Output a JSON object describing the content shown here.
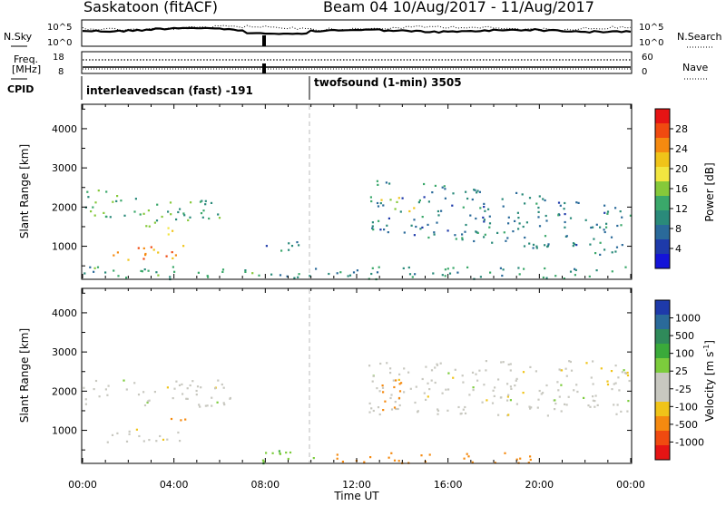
{
  "header": {
    "radar": "Saskatoon (fitACF)",
    "beam_and_date": "Beam 04  10/Aug/2017 - 11/Aug/2017"
  },
  "top_panels": {
    "nsky_label": "N.Sky",
    "nsky_ticks": [
      "10^5",
      "10^0"
    ],
    "nsearch_label": "N.Search",
    "freq_label_1": "Freq.",
    "freq_label_2": "[MHz]",
    "freq_ticks": [
      "18",
      "8"
    ],
    "nave_ticks": [
      "60",
      "0"
    ],
    "nave_label": "Nave",
    "cpid_label": "CPID",
    "cpid_1": "interleavedscan (fast) -191",
    "cpid_2": "twofsound (1-min) 3505"
  },
  "colorbars": {
    "power": {
      "label": "Power [dB]",
      "ticks": [
        "28",
        "24",
        "20",
        "16",
        "12",
        "8",
        "4"
      ],
      "colors": [
        "#e61414",
        "#f04a10",
        "#f58a10",
        "#f0c419",
        "#f2e640",
        "#86c93a",
        "#3aa86a",
        "#2a8a7a",
        "#2a6a9a",
        "#1e3aaa",
        "#1414d8"
      ]
    },
    "velocity": {
      "label": "Velocity [m s",
      "label_sup": "-1",
      "label_end": "]",
      "ticks": [
        "1000",
        "500",
        "100",
        "25",
        "-25",
        "-100",
        "-500",
        "-1000"
      ],
      "colors": [
        "#1e3aaa",
        "#2a6a9a",
        "#2f8a5a",
        "#3aaa3a",
        "#7ccc3c",
        "#c8c8c0",
        "#c8c8c0",
        "#f0c419",
        "#f58a10",
        "#f04a10",
        "#e61414"
      ]
    }
  },
  "axes": {
    "ylabel": "Slant Range [km]",
    "yticks": [
      "4000",
      "3000",
      "2000",
      "1000"
    ],
    "xlabel": "Time UT",
    "xticks": [
      "00:00",
      "04:00",
      "08:00",
      "12:00",
      "16:00",
      "20:00",
      "00:00"
    ]
  },
  "chart_data": [
    {
      "type": "heatmap",
      "title": "",
      "quantity": "Power [dB]",
      "ylabel": "Slant Range [km]",
      "xlabel": "Time UT",
      "x_hours": [
        0,
        24
      ],
      "ylim": [
        180,
        4600
      ],
      "color_range": [
        0,
        30
      ],
      "echo_regions": [
        {
          "t0": 0.0,
          "t1": 6.5,
          "r0": 1600,
          "r1": 2300,
          "trend": "descending-then-rising",
          "power": 12
        },
        {
          "t0": 1.0,
          "t1": 4.5,
          "r0": 650,
          "r1": 1050,
          "power": 24
        },
        {
          "t0": 3.5,
          "t1": 4.5,
          "r0": 1200,
          "r1": 1500,
          "power": 20
        },
        {
          "t0": 7.5,
          "t1": 9.5,
          "r0": 900,
          "r1": 1200,
          "power": 8
        },
        {
          "t0": 0.0,
          "t1": 24.0,
          "r0": 180,
          "r1": 500,
          "power": 10
        },
        {
          "t0": 12.5,
          "t1": 24.0,
          "r0": 1400,
          "r1": 2800,
          "trend": "descending",
          "power": 8
        },
        {
          "t0": 13.0,
          "t1": 14.5,
          "r0": 1900,
          "r1": 2300,
          "power": 18
        }
      ]
    },
    {
      "type": "heatmap",
      "title": "",
      "quantity": "Velocity [m s-1]",
      "ylabel": "Slant Range [km]",
      "xlabel": "Time UT",
      "x_hours": [
        0,
        24
      ],
      "ylim": [
        180,
        4600
      ],
      "color_range": [
        -1000,
        1000
      ],
      "echo_regions": [
        {
          "t0": 0.0,
          "t1": 6.5,
          "r0": 1600,
          "r1": 2300,
          "velocity": 0
        },
        {
          "t0": 1.0,
          "t1": 4.5,
          "r0": 650,
          "r1": 1050,
          "velocity": 0
        },
        {
          "t0": 3.5,
          "t1": 4.5,
          "r0": 1200,
          "r1": 1500,
          "velocity": -150
        },
        {
          "t0": 7.5,
          "t1": 11.0,
          "r0": 180,
          "r1": 500,
          "velocity": 80
        },
        {
          "t0": 11.0,
          "t1": 20.0,
          "r0": 180,
          "r1": 450,
          "velocity": -150
        },
        {
          "t0": 12.5,
          "t1": 24.0,
          "r0": 1400,
          "r1": 2800,
          "velocity": 0
        },
        {
          "t0": 13.0,
          "t1": 14.0,
          "r0": 1300,
          "r1": 2300,
          "velocity": -300
        }
      ]
    }
  ]
}
